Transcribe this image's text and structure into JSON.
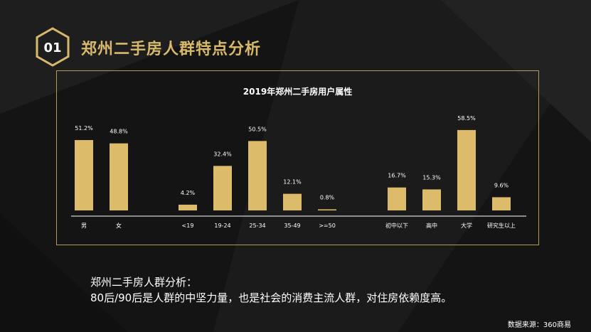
{
  "header": {
    "badge_number": "01",
    "title": "郑州二手房人群特点分析"
  },
  "chart_data": {
    "type": "bar",
    "title": "2019年郑州二手房用户属性",
    "groups": [
      {
        "categories": [
          "男",
          "女"
        ],
        "values": [
          51.2,
          48.8
        ],
        "labels": [
          "51.2%",
          "48.8%"
        ]
      },
      {
        "categories": [
          "<19",
          "19-24",
          "25-34",
          "35-49",
          ">=50"
        ],
        "values": [
          4.2,
          32.4,
          50.5,
          12.1,
          0.8
        ],
        "labels": [
          "4.2%",
          "32.4%",
          "50.5%",
          "12.1%",
          "0.8%"
        ]
      },
      {
        "categories": [
          "初中以下",
          "高中",
          "大学",
          "研究生以上"
        ],
        "values": [
          16.7,
          15.3,
          58.5,
          9.6
        ],
        "labels": [
          "16.7%",
          "15.3%",
          "58.5%",
          "9.6%"
        ]
      }
    ],
    "ylim": [
      0,
      60
    ],
    "grid": false,
    "bar_color": "#dcbb6b"
  },
  "analysis": {
    "line1": "郑州二手房人群分析：",
    "line2": "80后/90后是人群的中坚力量，也是社会的消费主流人群，对住房依赖度高。"
  },
  "source": "数据来源：360商易",
  "colors": {
    "accent": "#d8b96c",
    "frame": "#b79a58",
    "background": "#141414"
  }
}
